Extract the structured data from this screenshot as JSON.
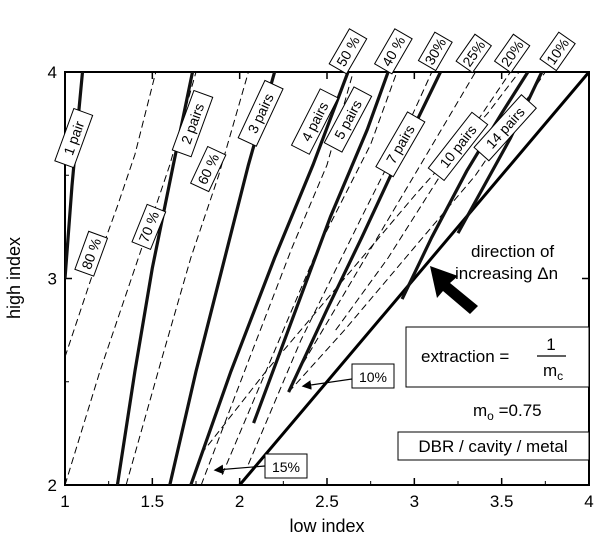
{
  "chart_data": {
    "type": "line",
    "title": "",
    "xlabel": "low index",
    "ylabel": "high index",
    "xlim": [
      1,
      4
    ],
    "ylim": [
      2,
      4
    ],
    "xticks": [
      "1",
      "1.5",
      "2",
      "2.5",
      "3",
      "3.5",
      "4"
    ],
    "yticks": [
      "2",
      "3",
      "4"
    ],
    "grid": false,
    "diagonal_line": {
      "x": [
        2,
        4
      ],
      "y": [
        2,
        4
      ]
    },
    "pair_curves": [
      {
        "label": "1 pair",
        "points": [
          [
            1.0,
            3.0
          ],
          [
            1.04,
            3.45
          ],
          [
            1.08,
            3.82
          ],
          [
            1.1,
            4.0
          ]
        ]
      },
      {
        "label": "2 pairs",
        "points": [
          [
            1.3,
            2.0
          ],
          [
            1.4,
            2.55
          ],
          [
            1.5,
            3.05
          ],
          [
            1.62,
            3.55
          ],
          [
            1.73,
            4.0
          ]
        ]
      },
      {
        "label": "3 pairs",
        "points": [
          [
            1.6,
            2.0
          ],
          [
            1.75,
            2.55
          ],
          [
            1.9,
            3.05
          ],
          [
            2.05,
            3.55
          ],
          [
            2.2,
            4.0
          ]
        ]
      },
      {
        "label": "4 pairs",
        "points": [
          [
            1.72,
            2.0
          ],
          [
            1.95,
            2.55
          ],
          [
            2.2,
            3.1
          ],
          [
            2.42,
            3.55
          ],
          [
            2.62,
            4.0
          ]
        ]
      },
      {
        "label": "5 pairs",
        "points": [
          [
            2.08,
            2.3
          ],
          [
            2.3,
            2.8
          ],
          [
            2.52,
            3.3
          ],
          [
            2.73,
            3.72
          ],
          [
            2.85,
            4.0
          ]
        ]
      },
      {
        "label": "7 pairs",
        "points": [
          [
            2.28,
            2.45
          ],
          [
            2.5,
            2.85
          ],
          [
            2.7,
            3.2
          ],
          [
            2.92,
            3.6
          ],
          [
            3.15,
            4.0
          ]
        ]
      },
      {
        "label": "10 pairs",
        "points": [
          [
            2.93,
            2.9
          ],
          [
            3.1,
            3.2
          ],
          [
            3.3,
            3.52
          ],
          [
            3.5,
            3.8
          ],
          [
            3.65,
            4.0
          ]
        ]
      },
      {
        "label": "14 pairs",
        "points": [
          [
            3.25,
            3.22
          ],
          [
            3.4,
            3.45
          ],
          [
            3.55,
            3.68
          ],
          [
            3.73,
            4.0
          ]
        ]
      }
    ],
    "extraction_curves": [
      {
        "label": "80 %",
        "points": [
          [
            1.0,
            2.62
          ],
          [
            1.15,
            3.0
          ],
          [
            1.3,
            3.35
          ],
          [
            1.4,
            3.6
          ],
          [
            1.52,
            4.0
          ]
        ]
      },
      {
        "label": "70 %",
        "points": [
          [
            1.0,
            2.0
          ],
          [
            1.2,
            2.55
          ],
          [
            1.42,
            3.1
          ],
          [
            1.6,
            3.55
          ],
          [
            1.75,
            4.0
          ]
        ]
      },
      {
        "label": "60 %",
        "points": [
          [
            1.35,
            2.0
          ],
          [
            1.55,
            2.6
          ],
          [
            1.72,
            3.1
          ],
          [
            1.88,
            3.5
          ],
          [
            2.05,
            4.0
          ]
        ]
      },
      {
        "label": "50 %",
        "points": [
          [
            1.78,
            2.0
          ],
          [
            2.05,
            2.6
          ],
          [
            2.3,
            3.15
          ],
          [
            2.5,
            3.55
          ],
          [
            2.65,
            4.0
          ]
        ]
      },
      {
        "label": "40 %",
        "points": [
          [
            1.9,
            2.05
          ],
          [
            2.2,
            2.65
          ],
          [
            2.45,
            3.15
          ],
          [
            2.75,
            3.65
          ],
          [
            2.9,
            4.0
          ]
        ]
      },
      {
        "label": "30%",
        "points": [
          [
            2.05,
            2.1
          ],
          [
            2.35,
            2.7
          ],
          [
            2.7,
            3.3
          ],
          [
            2.95,
            3.72
          ],
          [
            3.1,
            4.0
          ]
        ]
      },
      {
        "label": "25%",
        "points": [
          [
            2.3,
            2.5
          ],
          [
            2.65,
            3.0
          ],
          [
            3.0,
            3.5
          ],
          [
            3.35,
            4.0
          ]
        ]
      },
      {
        "label": "20%",
        "points": [
          [
            2.55,
            2.75
          ],
          [
            2.85,
            3.1
          ],
          [
            3.15,
            3.5
          ],
          [
            3.55,
            4.0
          ]
        ]
      },
      {
        "label": "15%",
        "points": [
          [
            1.78,
            2.15
          ],
          [
            2.15,
            2.55
          ],
          [
            2.55,
            2.95
          ],
          [
            3.0,
            3.4
          ],
          [
            3.42,
            3.8
          ],
          [
            3.6,
            4.0
          ]
        ]
      },
      {
        "label": "10%",
        "points": [
          [
            2.28,
            2.45
          ],
          [
            2.6,
            2.75
          ],
          [
            3.0,
            3.15
          ],
          [
            3.35,
            3.5
          ],
          [
            3.75,
            4.0
          ]
        ]
      }
    ],
    "annotations": {
      "direction_line1": "direction of",
      "direction_line2": "increasing Δn",
      "extraction_label": "extraction =",
      "fraction_num": "1",
      "fraction_den": "m",
      "fraction_den_sub": "c",
      "mo_label": "m",
      "mo_sub": "o",
      "mo_value": " =0.75",
      "structure": "DBR / cavity / metal",
      "callout_10": "10%",
      "callout_15": "15%"
    }
  }
}
